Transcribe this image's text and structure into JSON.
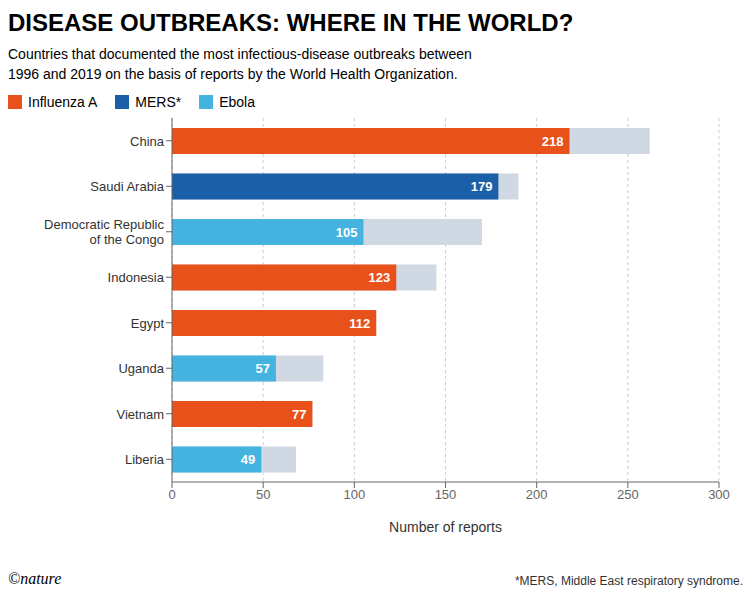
{
  "chart_data": {
    "type": "bar",
    "orientation": "horizontal",
    "title": "DISEASE OUTBREAKS: WHERE IN THE WORLD?",
    "subtitle": "Countries that documented the most infectious-disease outbreaks between\n1996 and 2019 on the basis of reports by the World Health Organization.",
    "footnote": "*MERS, Middle East respiratory syndrome.",
    "watermark": "©nature",
    "xlabel": "Number of reports",
    "categories": [
      "China",
      "Saudi Arabia",
      "Democratic Republic\nof the Congo",
      "Indonesia",
      "Egypt",
      "Uganda",
      "Vietnam",
      "Liberia"
    ],
    "series": [
      {
        "color": "#D0D8E4",
        "values": [
          262,
          190,
          170,
          145,
          112,
          83,
          77,
          68
        ]
      },
      {
        "name": "Influenza A",
        "color": "#E8521A",
        "values": [
          218,
          null,
          null,
          123,
          112,
          null,
          77,
          null
        ]
      },
      {
        "name": "MERS*",
        "color": "#1B5FA8",
        "values": [
          null,
          179,
          null,
          null,
          null,
          null,
          null,
          null
        ]
      },
      {
        "name": "Ebola",
        "color": "#45B3E0",
        "values": [
          null,
          null,
          105,
          null,
          null,
          57,
          null,
          49
        ]
      }
    ],
    "xlim": [
      0,
      300
    ],
    "xticks": [
      0,
      50,
      100,
      150,
      200,
      250,
      300
    ],
    "grid": true,
    "legend": "upper left",
    "data_labels": true
  }
}
